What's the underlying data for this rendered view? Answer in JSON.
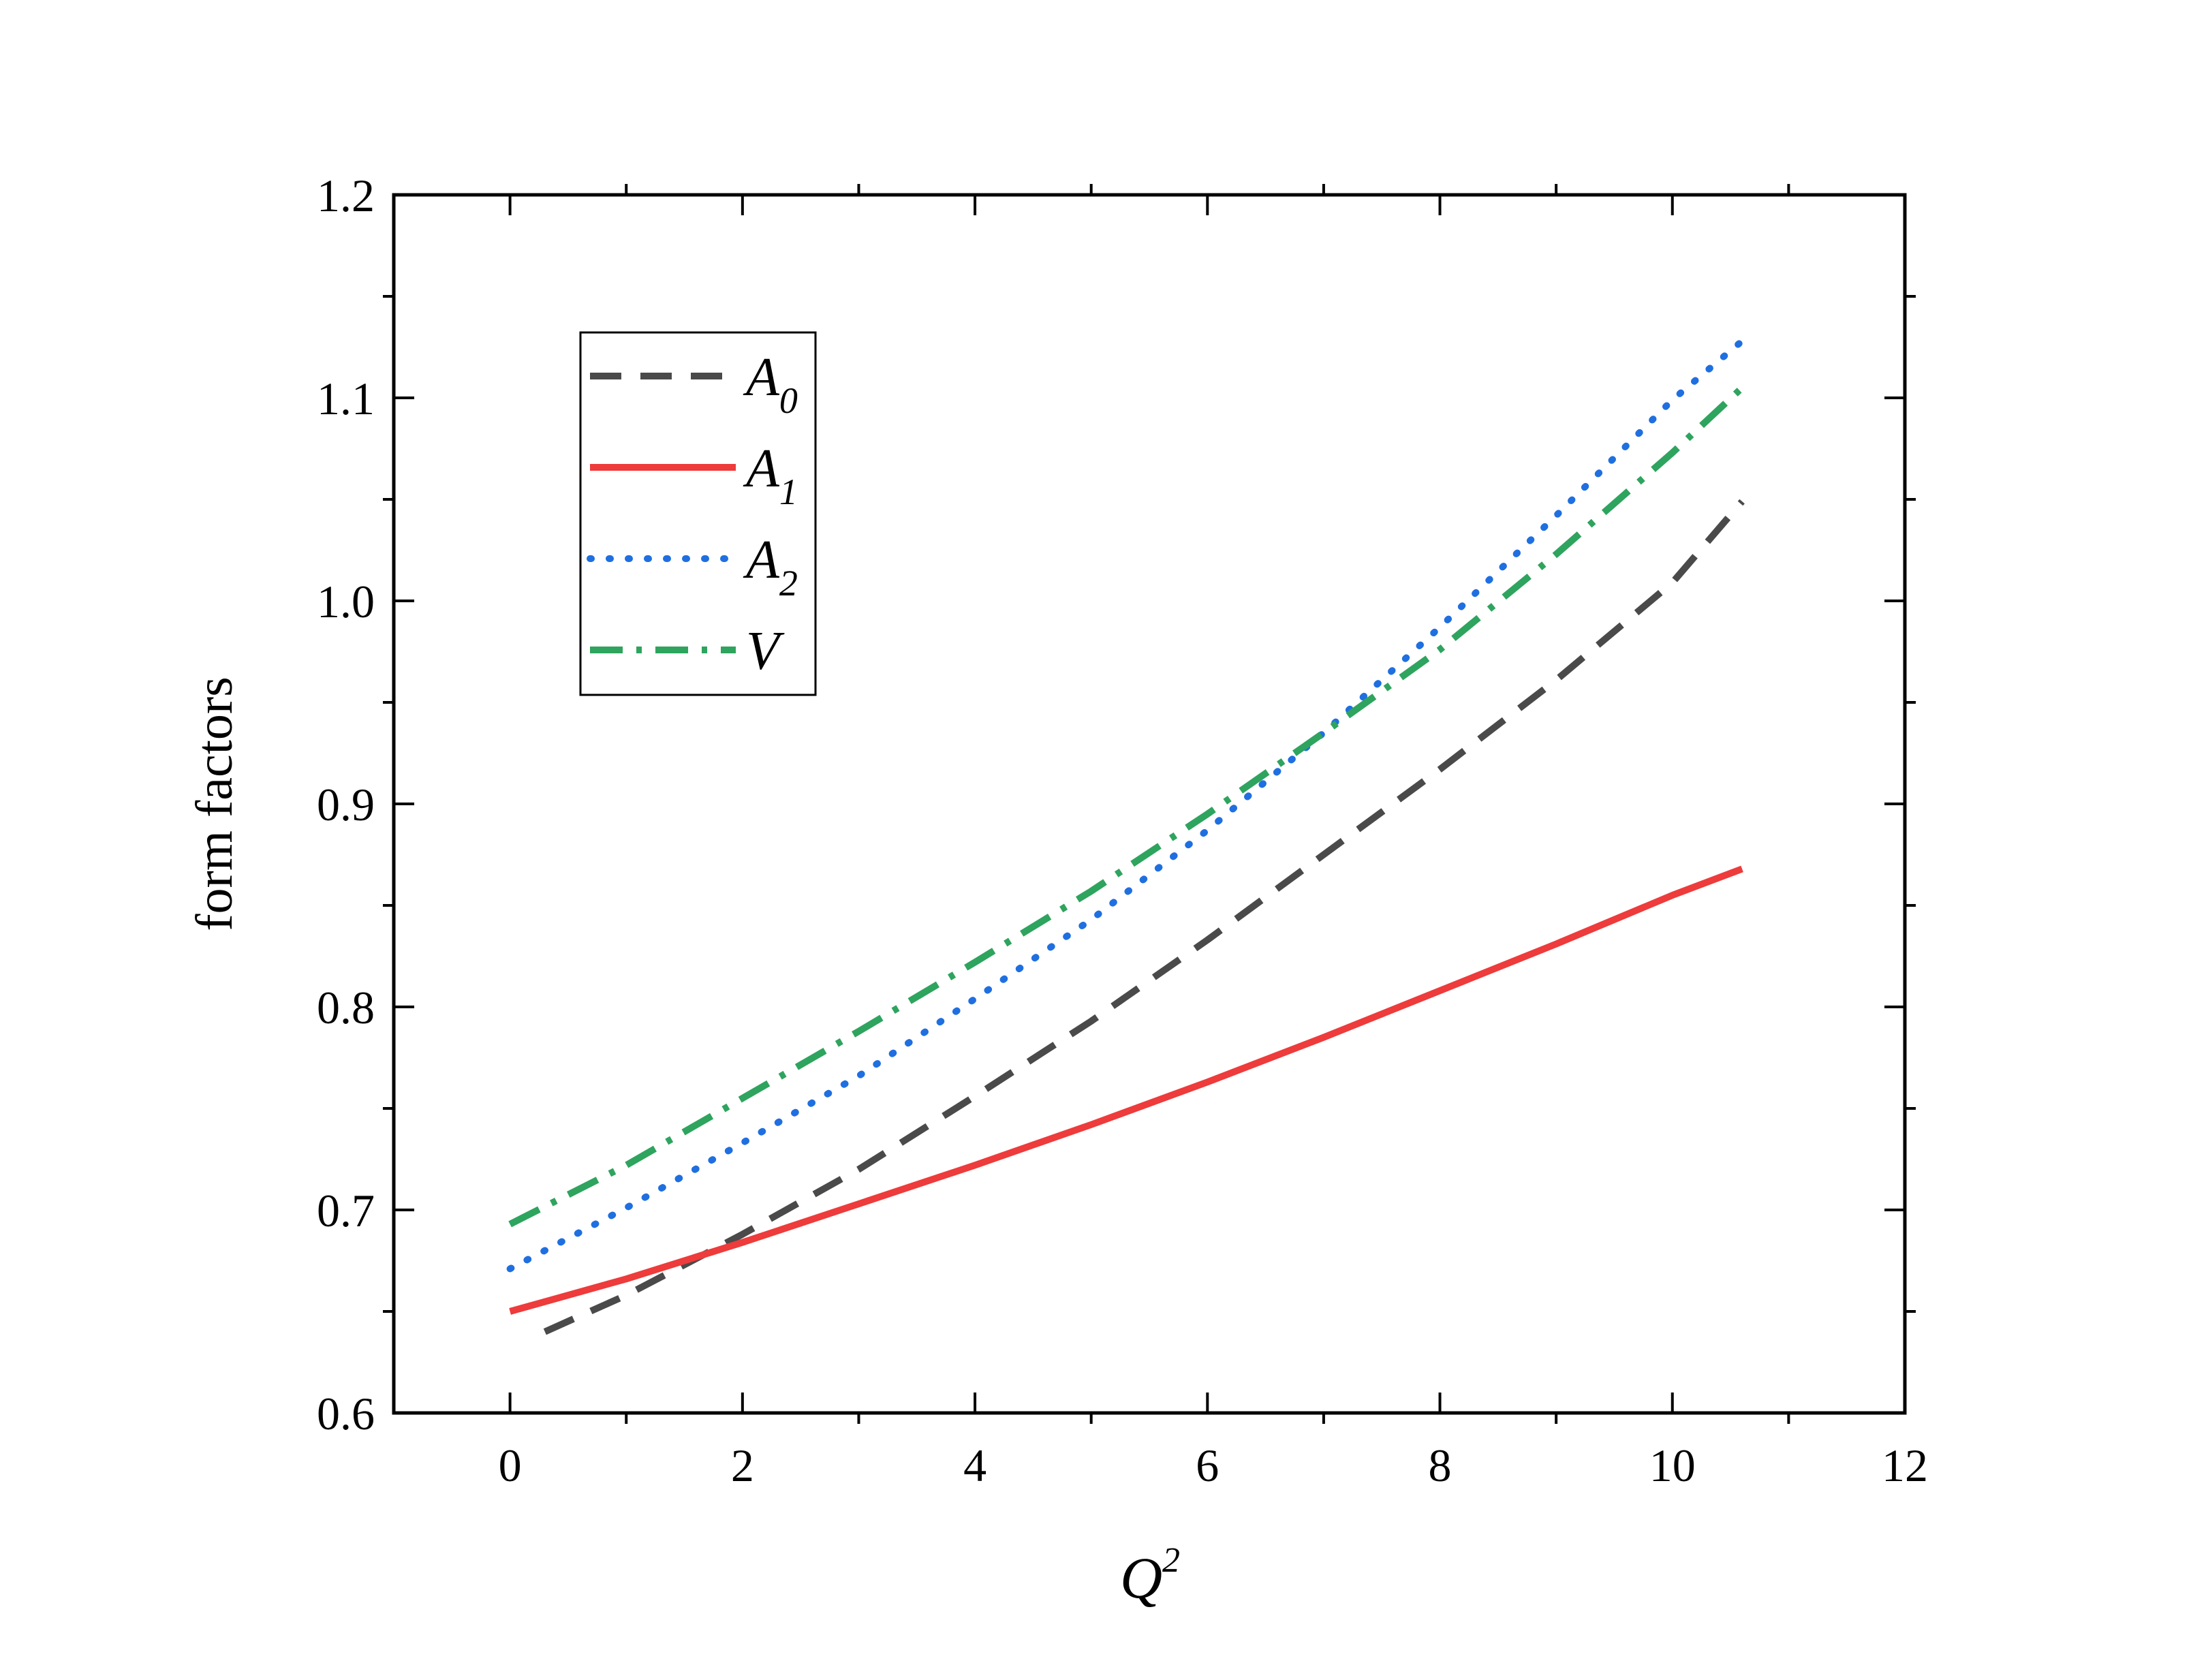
{
  "chart_data": {
    "type": "line",
    "title": "",
    "xlabel": "Q",
    "xlabel_superscript": "2",
    "ylabel": "form factors",
    "xlim": [
      -1,
      12
    ],
    "ylim": [
      0.6,
      1.2
    ],
    "x_ticks": [
      0,
      2,
      4,
      6,
      8,
      10,
      12
    ],
    "x_tick_labels": [
      "0",
      "2",
      "4",
      "6",
      "8",
      "10",
      "12"
    ],
    "x_minor_ticks": [
      -1,
      1,
      3,
      5,
      7,
      9,
      11
    ],
    "y_ticks": [
      0.6,
      0.7,
      0.8,
      0.9,
      1.0,
      1.1,
      1.2
    ],
    "y_tick_labels": [
      "0.6",
      "0.7",
      "0.8",
      "0.9",
      "1.0",
      "1.1",
      "1.2"
    ],
    "y_minor_ticks": [
      0.65,
      0.75,
      0.85,
      0.95,
      1.05,
      1.15
    ],
    "grid": false,
    "legend_position": "upper-left",
    "series": [
      {
        "name": "A",
        "subscript": "0",
        "style": "dashed",
        "color": "#4a4a4a",
        "x": [
          0.3,
          1,
          2,
          3,
          4,
          5,
          6,
          7,
          8,
          9,
          10,
          10.6
        ],
        "y": [
          0.64,
          0.658,
          0.688,
          0.72,
          0.756,
          0.793,
          0.833,
          0.875,
          0.917,
          0.961,
          1.009,
          1.049
        ]
      },
      {
        "name": "A",
        "subscript": "1",
        "style": "solid",
        "color": "#ee3b3b",
        "x": [
          0,
          1,
          2,
          3,
          4,
          5,
          6,
          7,
          8,
          9,
          10,
          10.6
        ],
        "y": [
          0.65,
          0.666,
          0.684,
          0.703,
          0.722,
          0.742,
          0.763,
          0.785,
          0.808,
          0.831,
          0.855,
          0.868
        ]
      },
      {
        "name": "A",
        "subscript": "2",
        "style": "dotted",
        "color": "#1f6fe0",
        "x": [
          0,
          1,
          2,
          3,
          4,
          5,
          6,
          7,
          8,
          9,
          10,
          10.6
        ],
        "y": [
          0.671,
          0.701,
          0.733,
          0.766,
          0.804,
          0.843,
          0.887,
          0.935,
          0.987,
          1.042,
          1.099,
          1.128
        ]
      },
      {
        "name": "V",
        "subscript": "",
        "style": "dashdot",
        "color": "#2ea45e",
        "x": [
          0,
          1,
          2,
          3,
          4,
          5,
          6,
          7,
          8,
          9,
          10,
          10.6
        ],
        "y": [
          0.693,
          0.722,
          0.755,
          0.788,
          0.822,
          0.857,
          0.895,
          0.935,
          0.976,
          1.023,
          1.073,
          1.105
        ]
      }
    ]
  }
}
